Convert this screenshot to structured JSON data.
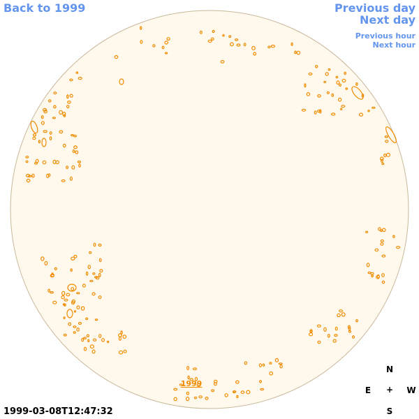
{
  "nav": {
    "back_label": "Back to 1999",
    "prev_day_label": "Previous day",
    "next_day_label": "Next day",
    "prev_hour_label": "Previous hour",
    "next_hour_label": "Next hour"
  },
  "disk": {
    "year_label": "1999",
    "fill_color": "#fff8ec",
    "border_color": "#c8b89a",
    "contour_color": "#f08c00"
  },
  "timestamp": "1999-03-08T12:47:32",
  "compass": {
    "north": "N",
    "east": "E",
    "center": "+",
    "west": "W",
    "south": "S"
  },
  "colors": {
    "link": "#6495ed",
    "text": "#000000"
  }
}
